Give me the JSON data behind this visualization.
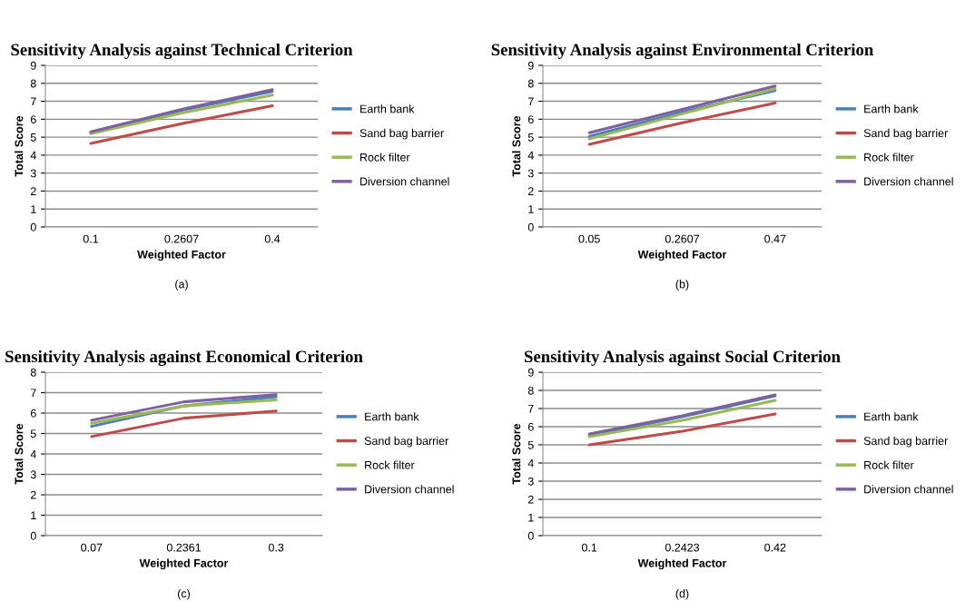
{
  "chart_data": [
    {
      "type": "line",
      "title": "Sensitivity Analysis against Technical Criterion",
      "xlabel": "Weighted Factor",
      "ylabel": "Total Score",
      "categories": [
        "0.1",
        "0.2607",
        "0.4"
      ],
      "ylim": [
        0,
        9
      ],
      "yticks": [
        0,
        1,
        2,
        3,
        4,
        5,
        6,
        7,
        8,
        9
      ],
      "grid": "y",
      "legend": "right",
      "annotations": [
        "(a)"
      ],
      "series": [
        {
          "name": "Earth bank",
          "color": "#4a7ebb",
          "values": [
            5.25,
            6.5,
            7.55
          ]
        },
        {
          "name": "Sand bag barrier",
          "color": "#be4b48",
          "values": [
            4.65,
            5.75,
            6.75
          ]
        },
        {
          "name": "Rock filter",
          "color": "#98b954",
          "values": [
            5.2,
            6.35,
            7.35
          ]
        },
        {
          "name": "Diversion channel",
          "color": "#7d60a0",
          "values": [
            5.3,
            6.55,
            7.65
          ]
        }
      ]
    },
    {
      "type": "line",
      "title": "Sensitivity Analysis against Environmental Criterion",
      "xlabel": "Weighted Factor",
      "ylabel": "Total Score",
      "categories": [
        "0.05",
        "0.2607",
        "0.47"
      ],
      "ylim": [
        0,
        9
      ],
      "yticks": [
        0,
        1,
        2,
        3,
        4,
        5,
        6,
        7,
        8,
        9
      ],
      "grid": "y",
      "legend": "right",
      "annotations": [
        "(b)"
      ],
      "series": [
        {
          "name": "Earth bank",
          "color": "#4a7ebb",
          "values": [
            5.05,
            6.4,
            7.6
          ]
        },
        {
          "name": "Sand bag barrier",
          "color": "#be4b48",
          "values": [
            4.6,
            5.8,
            6.9
          ]
        },
        {
          "name": "Rock filter",
          "color": "#98b954",
          "values": [
            4.9,
            6.3,
            7.7
          ]
        },
        {
          "name": "Diversion channel",
          "color": "#7d60a0",
          "values": [
            5.25,
            6.55,
            7.85
          ]
        }
      ]
    },
    {
      "type": "line",
      "title": "Sensitivity Analysis against Economical Criterion",
      "xlabel": "Weighted Factor",
      "ylabel": "Total Score",
      "categories": [
        "0.07",
        "0.2361",
        "0.3"
      ],
      "ylim": [
        0,
        8
      ],
      "yticks": [
        0,
        1,
        2,
        3,
        4,
        5,
        6,
        7,
        8
      ],
      "grid": "y",
      "legend": "right",
      "annotations": [
        "(c)"
      ],
      "series": [
        {
          "name": "Earth bank",
          "color": "#4a7ebb",
          "values": [
            5.35,
            6.35,
            6.8
          ]
        },
        {
          "name": "Sand bag barrier",
          "color": "#be4b48",
          "values": [
            4.85,
            5.75,
            6.1
          ]
        },
        {
          "name": "Rock filter",
          "color": "#98b954",
          "values": [
            5.5,
            6.35,
            6.65
          ]
        },
        {
          "name": "Diversion channel",
          "color": "#7d60a0",
          "values": [
            5.65,
            6.55,
            6.9
          ]
        }
      ]
    },
    {
      "type": "line",
      "title": "Sensitivity Analysis against Social Criterion",
      "xlabel": "Weighted Factor",
      "ylabel": "Total Score",
      "categories": [
        "0.1",
        "0.2423",
        "0.42"
      ],
      "ylim": [
        0,
        9
      ],
      "yticks": [
        0,
        1,
        2,
        3,
        4,
        5,
        6,
        7,
        8,
        9
      ],
      "grid": "y",
      "legend": "right",
      "annotations": [
        "(d)"
      ],
      "series": [
        {
          "name": "Earth bank",
          "color": "#4a7ebb",
          "values": [
            5.5,
            6.55,
            7.7
          ]
        },
        {
          "name": "Sand bag barrier",
          "color": "#be4b48",
          "values": [
            5.0,
            5.75,
            6.7
          ]
        },
        {
          "name": "Rock filter",
          "color": "#98b954",
          "values": [
            5.45,
            6.35,
            7.45
          ]
        },
        {
          "name": "Diversion channel",
          "color": "#7d60a0",
          "values": [
            5.6,
            6.6,
            7.75
          ]
        }
      ]
    }
  ]
}
